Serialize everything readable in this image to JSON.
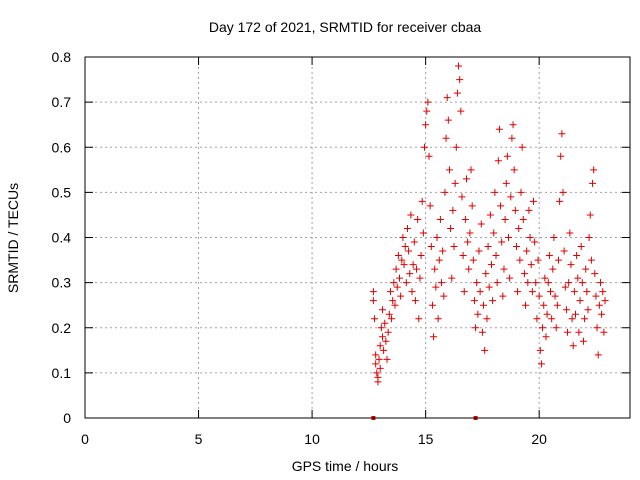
{
  "chart_data": {
    "type": "scatter",
    "title": "Day 172 of 2021, SRMTID for receiver cbaa",
    "xlabel": "GPS time / hours",
    "ylabel": "SRMTID / TECUs",
    "xlim": [
      0,
      24
    ],
    "ylim": [
      0,
      0.8
    ],
    "xticks": [
      0,
      5,
      10,
      15,
      20
    ],
    "yticks": [
      0,
      0.1,
      0.2,
      0.3,
      0.4,
      0.5,
      0.6,
      0.7,
      0.8
    ],
    "xtick_labels": [
      "0",
      "5",
      "10",
      "15",
      "20"
    ],
    "ytick_labels": [
      "0",
      "0.1",
      "0.2",
      "0.3",
      "0.4",
      "0.5",
      "0.6",
      "0.7",
      "0.8"
    ],
    "grid": true,
    "marker": "+",
    "color": "#e00000",
    "series": [
      {
        "name": "SRMTID",
        "points": [
          [
            12.7,
            0.28
          ],
          [
            12.7,
            0.26
          ],
          [
            12.75,
            0.22
          ],
          [
            12.8,
            0.14
          ],
          [
            12.8,
            0.12
          ],
          [
            12.85,
            0.1
          ],
          [
            12.9,
            0.08
          ],
          [
            12.9,
            0.09
          ],
          [
            12.95,
            0.13
          ],
          [
            13.0,
            0.11
          ],
          [
            13.0,
            0.16
          ],
          [
            13.05,
            0.2
          ],
          [
            13.1,
            0.24
          ],
          [
            13.1,
            0.18
          ],
          [
            13.15,
            0.15
          ],
          [
            13.2,
            0.21
          ],
          [
            13.25,
            0.17
          ],
          [
            13.3,
            0.13
          ],
          [
            13.35,
            0.19
          ],
          [
            13.4,
            0.23
          ],
          [
            13.45,
            0.28
          ],
          [
            13.5,
            0.22
          ],
          [
            13.55,
            0.26
          ],
          [
            13.6,
            0.3
          ],
          [
            13.65,
            0.25
          ],
          [
            13.7,
            0.33
          ],
          [
            13.75,
            0.29
          ],
          [
            13.8,
            0.36
          ],
          [
            13.85,
            0.31
          ],
          [
            13.9,
            0.27
          ],
          [
            13.95,
            0.35
          ],
          [
            14.0,
            0.4
          ],
          [
            14.05,
            0.34
          ],
          [
            14.1,
            0.38
          ],
          [
            14.15,
            0.3
          ],
          [
            14.2,
            0.42
          ],
          [
            14.25,
            0.37
          ],
          [
            14.3,
            0.32
          ],
          [
            14.35,
            0.45
          ],
          [
            14.4,
            0.28
          ],
          [
            14.45,
            0.34
          ],
          [
            14.5,
            0.39
          ],
          [
            14.55,
            0.26
          ],
          [
            14.6,
            0.33
          ],
          [
            14.65,
            0.44
          ],
          [
            14.7,
            0.22
          ],
          [
            14.75,
            0.31
          ],
          [
            14.8,
            0.36
          ],
          [
            14.85,
            0.48
          ],
          [
            14.9,
            0.41
          ],
          [
            14.95,
            0.6
          ],
          [
            15.0,
            0.65
          ],
          [
            15.05,
            0.68
          ],
          [
            15.1,
            0.7
          ],
          [
            15.15,
            0.58
          ],
          [
            15.2,
            0.47
          ],
          [
            15.25,
            0.38
          ],
          [
            15.3,
            0.25
          ],
          [
            15.35,
            0.18
          ],
          [
            15.4,
            0.33
          ],
          [
            15.45,
            0.29
          ],
          [
            15.5,
            0.4
          ],
          [
            15.55,
            0.22
          ],
          [
            15.6,
            0.35
          ],
          [
            15.65,
            0.44
          ],
          [
            15.7,
            0.3
          ],
          [
            15.75,
            0.37
          ],
          [
            15.8,
            0.27
          ],
          [
            15.85,
            0.5
          ],
          [
            15.9,
            0.62
          ],
          [
            15.95,
            0.71
          ],
          [
            16.0,
            0.66
          ],
          [
            16.05,
            0.55
          ],
          [
            16.1,
            0.42
          ],
          [
            16.15,
            0.31
          ],
          [
            16.2,
            0.46
          ],
          [
            16.25,
            0.38
          ],
          [
            16.3,
            0.52
          ],
          [
            16.35,
            0.6
          ],
          [
            16.4,
            0.72
          ],
          [
            16.45,
            0.78
          ],
          [
            16.5,
            0.75
          ],
          [
            16.55,
            0.68
          ],
          [
            16.6,
            0.49
          ],
          [
            16.65,
            0.36
          ],
          [
            16.7,
            0.28
          ],
          [
            16.75,
            0.44
          ],
          [
            16.8,
            0.53
          ],
          [
            16.85,
            0.39
          ],
          [
            16.9,
            0.33
          ],
          [
            16.95,
            0.41
          ],
          [
            17.0,
            0.55
          ],
          [
            17.05,
            0.47
          ],
          [
            17.1,
            0.35
          ],
          [
            17.15,
            0.26
          ],
          [
            17.2,
            0.2
          ],
          [
            17.25,
            0.3
          ],
          [
            17.3,
            0.23
          ],
          [
            17.35,
            0.37
          ],
          [
            17.4,
            0.28
          ],
          [
            17.45,
            0.43
          ],
          [
            17.5,
            0.19
          ],
          [
            17.55,
            0.25
          ],
          [
            17.6,
            0.15
          ],
          [
            17.65,
            0.32
          ],
          [
            17.7,
            0.22
          ],
          [
            17.75,
            0.38
          ],
          [
            17.8,
            0.29
          ],
          [
            17.85,
            0.45
          ],
          [
            17.9,
            0.34
          ],
          [
            17.95,
            0.26
          ],
          [
            18.0,
            0.41
          ],
          [
            18.05,
            0.5
          ],
          [
            18.1,
            0.36
          ],
          [
            18.15,
            0.3
          ],
          [
            18.2,
            0.57
          ],
          [
            18.25,
            0.64
          ],
          [
            18.3,
            0.47
          ],
          [
            18.35,
            0.39
          ],
          [
            18.4,
            0.27
          ],
          [
            18.45,
            0.33
          ],
          [
            18.5,
            0.44
          ],
          [
            18.55,
            0.52
          ],
          [
            18.6,
            0.58
          ],
          [
            18.65,
            0.4
          ],
          [
            18.7,
            0.31
          ],
          [
            18.75,
            0.49
          ],
          [
            18.8,
            0.62
          ],
          [
            18.85,
            0.65
          ],
          [
            18.9,
            0.55
          ],
          [
            18.95,
            0.46
          ],
          [
            19.0,
            0.38
          ],
          [
            19.05,
            0.28
          ],
          [
            19.1,
            0.42
          ],
          [
            19.15,
            0.35
          ],
          [
            19.2,
            0.5
          ],
          [
            19.25,
            0.6
          ],
          [
            19.3,
            0.44
          ],
          [
            19.35,
            0.32
          ],
          [
            19.4,
            0.25
          ],
          [
            19.45,
            0.37
          ],
          [
            19.5,
            0.3
          ],
          [
            19.55,
            0.46
          ],
          [
            19.6,
            0.4
          ],
          [
            19.65,
            0.34
          ],
          [
            19.7,
            0.28
          ],
          [
            19.75,
            0.48
          ],
          [
            19.8,
            0.39
          ],
          [
            19.85,
            0.3
          ],
          [
            19.9,
            0.22
          ],
          [
            19.95,
            0.35
          ],
          [
            20.0,
            0.27
          ],
          [
            20.05,
            0.15
          ],
          [
            20.1,
            0.12
          ],
          [
            20.15,
            0.2
          ],
          [
            20.2,
            0.25
          ],
          [
            20.25,
            0.31
          ],
          [
            20.3,
            0.18
          ],
          [
            20.35,
            0.23
          ],
          [
            20.4,
            0.3
          ],
          [
            20.45,
            0.36
          ],
          [
            20.5,
            0.28
          ],
          [
            20.55,
            0.22
          ],
          [
            20.6,
            0.33
          ],
          [
            20.65,
            0.4
          ],
          [
            20.7,
            0.27
          ],
          [
            20.75,
            0.2
          ],
          [
            20.8,
            0.25
          ],
          [
            20.85,
            0.35
          ],
          [
            20.9,
            0.48
          ],
          [
            20.95,
            0.58
          ],
          [
            21.0,
            0.63
          ],
          [
            21.05,
            0.5
          ],
          [
            21.1,
            0.37
          ],
          [
            21.15,
            0.29
          ],
          [
            21.2,
            0.24
          ],
          [
            21.25,
            0.19
          ],
          [
            21.3,
            0.3
          ],
          [
            21.35,
            0.41
          ],
          [
            21.4,
            0.34
          ],
          [
            21.45,
            0.22
          ],
          [
            21.5,
            0.16
          ],
          [
            21.55,
            0.28
          ],
          [
            21.6,
            0.23
          ],
          [
            21.65,
            0.36
          ],
          [
            21.7,
            0.31
          ],
          [
            21.75,
            0.19
          ],
          [
            21.8,
            0.26
          ],
          [
            21.85,
            0.38
          ],
          [
            21.9,
            0.3
          ],
          [
            21.95,
            0.17
          ],
          [
            22.0,
            0.22
          ],
          [
            22.05,
            0.33
          ],
          [
            22.1,
            0.28
          ],
          [
            22.15,
            0.24
          ],
          [
            22.2,
            0.4
          ],
          [
            22.25,
            0.45
          ],
          [
            22.3,
            0.35
          ],
          [
            22.35,
            0.52
          ],
          [
            22.4,
            0.55
          ],
          [
            22.45,
            0.32
          ],
          [
            22.5,
            0.27
          ],
          [
            22.55,
            0.2
          ],
          [
            22.6,
            0.14
          ],
          [
            22.65,
            0.25
          ],
          [
            22.7,
            0.3
          ],
          [
            22.75,
            0.23
          ],
          [
            22.8,
            0.28
          ],
          [
            22.85,
            0.19
          ],
          [
            22.9,
            0.26
          ]
        ]
      }
    ],
    "bottom_markers": [
      12.7,
      17.2
    ]
  }
}
